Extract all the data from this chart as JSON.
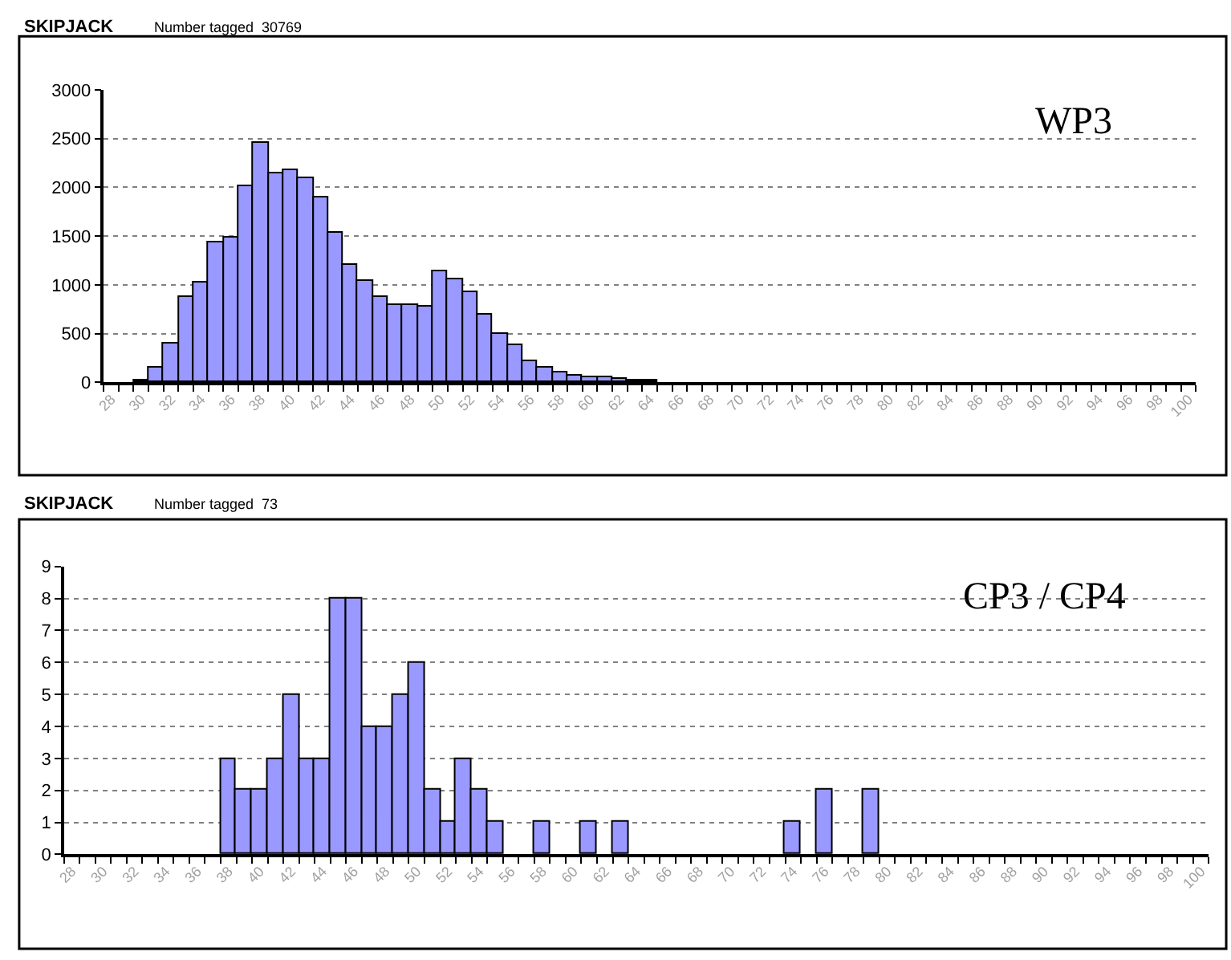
{
  "chart_data": [
    {
      "type": "bar",
      "title": "SKIPJACK",
      "subtitle": "Number tagged  30769",
      "annotations": [
        "WP3"
      ],
      "categories": [
        "28",
        null,
        "30",
        null,
        "32",
        null,
        "34",
        null,
        "36",
        null,
        "38",
        null,
        "40",
        null,
        "42",
        null,
        "44",
        null,
        "46",
        null,
        "48",
        null,
        "50",
        null,
        "52",
        null,
        "54",
        null,
        "56",
        null,
        "58",
        null,
        "60",
        null,
        "62",
        null,
        "64",
        null,
        "66",
        null,
        "68",
        null,
        "70",
        null,
        "72",
        null,
        "74",
        null,
        "76",
        null,
        "78",
        null,
        "80",
        null,
        "82",
        null,
        "84",
        null,
        "86",
        null,
        "88",
        null,
        "90",
        null,
        "92",
        null,
        "94",
        null,
        "96",
        null,
        "98",
        null,
        "100"
      ],
      "values": [
        0,
        0,
        25,
        150,
        400,
        875,
        1025,
        1440,
        1490,
        2020,
        2450,
        2140,
        2170,
        2100,
        1900,
        1540,
        1210,
        1040,
        880,
        790,
        790,
        780,
        1140,
        1060,
        930,
        700,
        500,
        380,
        225,
        150,
        110,
        75,
        55,
        55,
        30,
        25,
        25,
        0,
        0,
        0,
        0,
        0,
        0,
        0,
        0,
        0,
        0,
        0,
        0,
        0,
        0,
        0,
        0,
        0,
        0,
        0,
        0,
        0,
        0,
        0,
        0,
        0,
        0,
        0,
        0,
        0,
        0,
        0,
        0,
        0,
        0,
        0,
        0
      ],
      "color": "#9999ff",
      "ylim": [
        0,
        3000
      ],
      "yticks": [
        0,
        500,
        1000,
        1500,
        2000,
        2500,
        3000
      ],
      "grid": "y",
      "legend": false
    },
    {
      "type": "bar",
      "title": "SKIPJACK",
      "subtitle": "Number tagged  73",
      "annotations": [
        "CP3 / CP4"
      ],
      "categories": [
        "28",
        null,
        "30",
        null,
        "32",
        null,
        "34",
        null,
        "36",
        null,
        "38",
        null,
        "40",
        null,
        "42",
        null,
        "44",
        null,
        "46",
        null,
        "48",
        null,
        "50",
        null,
        "52",
        null,
        "54",
        null,
        "56",
        null,
        "58",
        null,
        "60",
        null,
        "62",
        null,
        "64",
        null,
        "66",
        null,
        "68",
        null,
        "70",
        null,
        "72",
        null,
        "74",
        null,
        "76",
        null,
        "78",
        null,
        "80",
        null,
        "82",
        null,
        "84",
        null,
        "86",
        null,
        "88",
        null,
        "90",
        null,
        "92",
        null,
        "94",
        null,
        "96",
        null,
        "98",
        null,
        "100"
      ],
      "values": [
        0,
        0,
        0,
        0,
        0,
        0,
        0,
        0,
        0,
        0,
        3,
        2,
        2,
        3,
        5,
        3,
        3,
        8,
        8,
        4,
        4,
        5,
        6,
        2,
        1,
        3,
        2,
        1,
        0,
        0,
        1,
        0,
        0,
        1,
        0,
        1,
        0,
        0,
        0,
        0,
        0,
        0,
        0,
        0,
        0,
        0,
        1,
        0,
        2,
        0,
        0,
        2,
        0,
        0,
        0,
        0,
        0,
        0,
        0,
        0,
        0,
        0,
        0,
        0,
        0,
        0,
        0,
        0,
        0,
        0,
        0,
        0,
        0
      ],
      "color": "#9999ff",
      "ylim": [
        0,
        9
      ],
      "yticks": [
        0,
        1,
        2,
        3,
        4,
        5,
        6,
        7,
        8,
        9
      ],
      "grid": "y",
      "legend": false
    }
  ]
}
